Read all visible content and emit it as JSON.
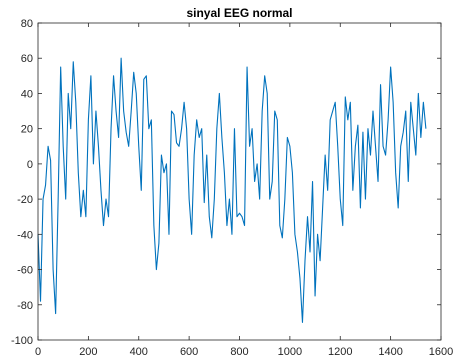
{
  "chart_data": {
    "type": "line",
    "title": "sinyal EEG normal",
    "xlabel": "",
    "ylabel": "",
    "xlim": [
      0,
      1600
    ],
    "ylim": [
      -100,
      80
    ],
    "xticks": [
      0,
      200,
      400,
      600,
      800,
      1000,
      1200,
      1400,
      1600
    ],
    "yticks": [
      -100,
      -80,
      -60,
      -40,
      -20,
      0,
      20,
      40,
      60,
      80
    ],
    "xtick_labels": [
      "0",
      "200",
      "400",
      "600",
      "800",
      "1000",
      "1200",
      "1400",
      "1600"
    ],
    "ytick_labels": [
      "-100",
      "-80",
      "-60",
      "-40",
      "-20",
      "0",
      "20",
      "40",
      "60",
      "80"
    ],
    "grid": false,
    "box": true,
    "series": [
      {
        "color": "#0072BD",
        "x": [
          0,
          10,
          20,
          30,
          40,
          50,
          60,
          70,
          80,
          90,
          100,
          110,
          120,
          130,
          140,
          150,
          160,
          170,
          180,
          190,
          200,
          210,
          220,
          230,
          240,
          250,
          260,
          270,
          280,
          290,
          300,
          310,
          320,
          330,
          340,
          350,
          360,
          370,
          380,
          390,
          400,
          410,
          420,
          430,
          440,
          450,
          460,
          470,
          480,
          490,
          500,
          510,
          520,
          530,
          540,
          550,
          560,
          570,
          580,
          590,
          600,
          610,
          620,
          630,
          640,
          650,
          660,
          670,
          680,
          690,
          700,
          710,
          720,
          730,
          740,
          750,
          760,
          770,
          780,
          790,
          800,
          810,
          820,
          830,
          840,
          850,
          860,
          870,
          880,
          890,
          900,
          910,
          920,
          930,
          940,
          950,
          960,
          970,
          980,
          990,
          1000,
          1010,
          1020,
          1030,
          1040,
          1050,
          1060,
          1070,
          1080,
          1090,
          1100,
          1110,
          1120,
          1130,
          1140,
          1150,
          1160,
          1170,
          1180,
          1190,
          1200,
          1210,
          1220,
          1230,
          1240,
          1250,
          1260,
          1270,
          1280,
          1290,
          1300,
          1310,
          1320,
          1330,
          1340,
          1350,
          1360,
          1370,
          1380,
          1390,
          1400,
          1410,
          1420,
          1430,
          1440,
          1450,
          1460,
          1470,
          1480,
          1490,
          1500,
          1510,
          1520,
          1530,
          1540
        ],
        "y": [
          -40,
          -78,
          -20,
          -12,
          10,
          2,
          -60,
          -85,
          -20,
          55,
          10,
          -20,
          40,
          20,
          58,
          35,
          -5,
          -30,
          -15,
          -30,
          25,
          50,
          0,
          30,
          10,
          -15,
          -35,
          -20,
          -30,
          20,
          50,
          30,
          15,
          60,
          30,
          18,
          10,
          30,
          52,
          40,
          10,
          -15,
          48,
          50,
          20,
          25,
          -35,
          -60,
          -45,
          5,
          -5,
          0,
          -40,
          30,
          28,
          12,
          10,
          20,
          35,
          20,
          -20,
          -40,
          5,
          25,
          15,
          20,
          -22,
          5,
          -30,
          -42,
          -20,
          20,
          40,
          15,
          -5,
          -35,
          -20,
          -40,
          20,
          -30,
          -28,
          -30,
          -35,
          55,
          10,
          20,
          -10,
          0,
          -20,
          30,
          50,
          40,
          -20,
          -10,
          30,
          25,
          -35,
          -42,
          -20,
          15,
          10,
          -5,
          -40,
          -50,
          -65,
          -90,
          -55,
          -30,
          -50,
          -10,
          -75,
          -40,
          -55,
          -25,
          5,
          -15,
          25,
          30,
          35,
          10,
          -20,
          -35,
          38,
          25,
          35,
          -15,
          10,
          22,
          -25,
          18,
          -20,
          20,
          5,
          30,
          10,
          -10,
          45,
          10,
          5,
          25,
          55,
          35,
          -5,
          -25,
          10,
          18,
          30,
          -10,
          35,
          20,
          5,
          40,
          15,
          35,
          20
        ]
      }
    ]
  }
}
